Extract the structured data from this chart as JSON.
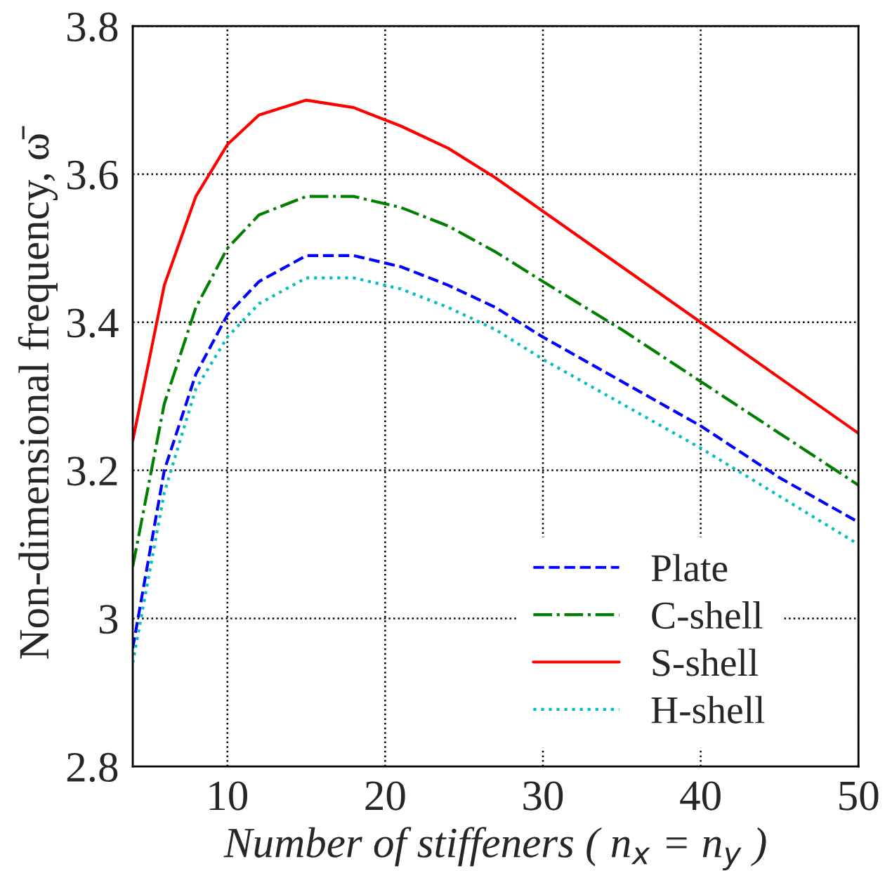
{
  "chart_data": {
    "type": "line",
    "xlabel": "Number of stiffeners ( n$_{x}$ = n$_{y}$ )",
    "ylabel": "Non-dimensional frequency, ω̄",
    "x": [
      4,
      6,
      8,
      10,
      12,
      15,
      18,
      21,
      24,
      27,
      30,
      35,
      40,
      45,
      50
    ],
    "xlim": [
      4,
      50
    ],
    "xticks": [
      10,
      20,
      30,
      40,
      50
    ],
    "ylim": [
      2.8,
      3.8
    ],
    "yticks": [
      2.8,
      3,
      3.2,
      3.4,
      3.6,
      3.8
    ],
    "grid": true,
    "legend": "bottom right",
    "marker": "none",
    "series": [
      {
        "name": "Plate",
        "color": "#0000ff",
        "line_style": "dashed",
        "values": [
          2.96,
          3.2,
          3.33,
          3.41,
          3.455,
          3.49,
          3.49,
          3.475,
          3.45,
          3.42,
          3.38,
          3.32,
          3.26,
          3.19,
          3.13
        ]
      },
      {
        "name": "C-shell",
        "color": "#008000",
        "line_style": "dashdot",
        "values": [
          3.07,
          3.29,
          3.42,
          3.5,
          3.545,
          3.57,
          3.57,
          3.555,
          3.53,
          3.495,
          3.455,
          3.39,
          3.32,
          3.25,
          3.18
        ]
      },
      {
        "name": "S-shell",
        "color": "#ff0000",
        "line_style": "solid",
        "values": [
          3.24,
          3.45,
          3.57,
          3.64,
          3.68,
          3.7,
          3.69,
          3.665,
          3.635,
          3.595,
          3.55,
          3.475,
          3.4,
          3.325,
          3.25
        ]
      },
      {
        "name": "H-shell",
        "color": "#00bfbf",
        "line_style": "dotted",
        "values": [
          2.94,
          3.17,
          3.31,
          3.38,
          3.425,
          3.46,
          3.46,
          3.445,
          3.42,
          3.39,
          3.35,
          3.29,
          3.23,
          3.165,
          3.1
        ]
      }
    ]
  }
}
